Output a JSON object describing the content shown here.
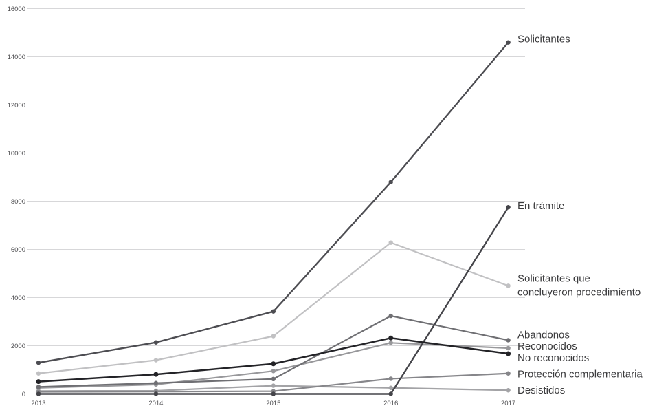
{
  "chart_data": {
    "type": "line",
    "title": "",
    "xlabel": "",
    "ylabel": "",
    "x": [
      2013,
      2014,
      2015,
      2016,
      2017
    ],
    "xtick_labels": [
      "2013",
      "2014",
      "2015",
      "2016",
      "2017"
    ],
    "yticks": [
      0,
      2000,
      4000,
      6000,
      8000,
      10000,
      12000,
      14000,
      16000
    ],
    "ytick_labels": [
      "0",
      "2000",
      "4000",
      "6000",
      "8000",
      "10000",
      "12000",
      "14000",
      "16000"
    ],
    "ylim": [
      0,
      16000
    ],
    "grid": true,
    "legend_position": "end-of-line-labels-right",
    "colors": {
      "background": "#ffffff",
      "gridline": "#d7d7d9",
      "tick_text": "#4f4f52",
      "label_text": "#3a3a3c"
    },
    "series": [
      {
        "key": "solicitantes",
        "name": "Solicitantes",
        "label_lines": [
          "Solicitantes"
        ],
        "color": "#4d4d52",
        "values": [
          1296,
          2137,
          3424,
          8796,
          14596
        ]
      },
      {
        "key": "en-tramite",
        "name": "En trámite",
        "label_lines": [
          "En trámite"
        ],
        "color": "#45454a",
        "values": [
          0,
          0,
          0,
          0,
          7750
        ]
      },
      {
        "key": "concluyeron",
        "name": "Solicitantes que concluyeron procedimiento",
        "label_lines": [
          "Solicitantes que",
          "concluyeron procedimiento"
        ],
        "color": "#c1c1c3",
        "values": [
          850,
          1400,
          2400,
          6280,
          4490
        ]
      },
      {
        "key": "abandonos",
        "name": "Abandonos",
        "label_lines": [
          "Abandonos"
        ],
        "color": "#6f6f73",
        "values": [
          290,
          450,
          620,
          3240,
          2230
        ]
      },
      {
        "key": "reconocidos",
        "name": "Reconocidos",
        "label_lines": [
          "Reconocidos"
        ],
        "color": "#98989b",
        "values": [
          250,
          390,
          950,
          2120,
          1900
        ]
      },
      {
        "key": "no-reconocidos",
        "name": "No reconocidos",
        "label_lines": [
          "No reconocidos"
        ],
        "color": "#232327",
        "values": [
          510,
          810,
          1250,
          2320,
          1670
        ]
      },
      {
        "key": "proteccion-complementaria",
        "name": "Protección complementaria",
        "label_lines": [
          "Protección complementaria"
        ],
        "color": "#86868a",
        "values": [
          85,
          95,
          110,
          630,
          850
        ]
      },
      {
        "key": "desistidos",
        "name": "Desistidos",
        "label_lines": [
          "Desistidos"
        ],
        "color": "#a3a3a6",
        "values": [
          120,
          130,
          340,
          250,
          150
        ]
      }
    ]
  }
}
